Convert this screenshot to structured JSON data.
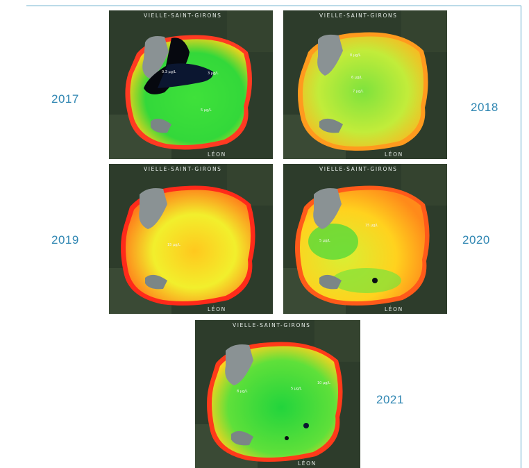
{
  "map": {
    "north_town": "VIELLE-SAINT-GIRONS",
    "south_town": "LÉON"
  },
  "panels": [
    {
      "year": "2017",
      "labels": [
        "0.3 µg/L",
        "3 µg/L",
        "5 µg/L"
      ],
      "colors": {
        "center": "#3fe13a",
        "mid": "#33d83a",
        "edge": "#ffd21a"
      }
    },
    {
      "year": "2018",
      "labels": [
        "8 µg/L",
        "6 µg/L",
        "7 µg/L"
      ],
      "colors": {
        "center": "#7ee23d",
        "mid": "#c2ec3a",
        "edge": "#ffb41e"
      }
    },
    {
      "year": "2019",
      "labels": [
        "15 µg/L"
      ],
      "colors": {
        "center": "#ffc81e",
        "mid": "#f2ef2c",
        "edge": "#ff7a1a"
      }
    },
    {
      "year": "2020",
      "labels": [
        "15 µg/L",
        "5 µg/L"
      ],
      "colors": {
        "center": "#d9ef33",
        "mid": "#ffd21e",
        "edge": "#ff8a1a"
      }
    },
    {
      "year": "2021",
      "labels": [
        "8 µg/L",
        "5 µg/L",
        "10 µg/L"
      ],
      "colors": {
        "center": "#22d43c",
        "mid": "#5fe03a",
        "edge": "#ffd21e"
      }
    }
  ]
}
